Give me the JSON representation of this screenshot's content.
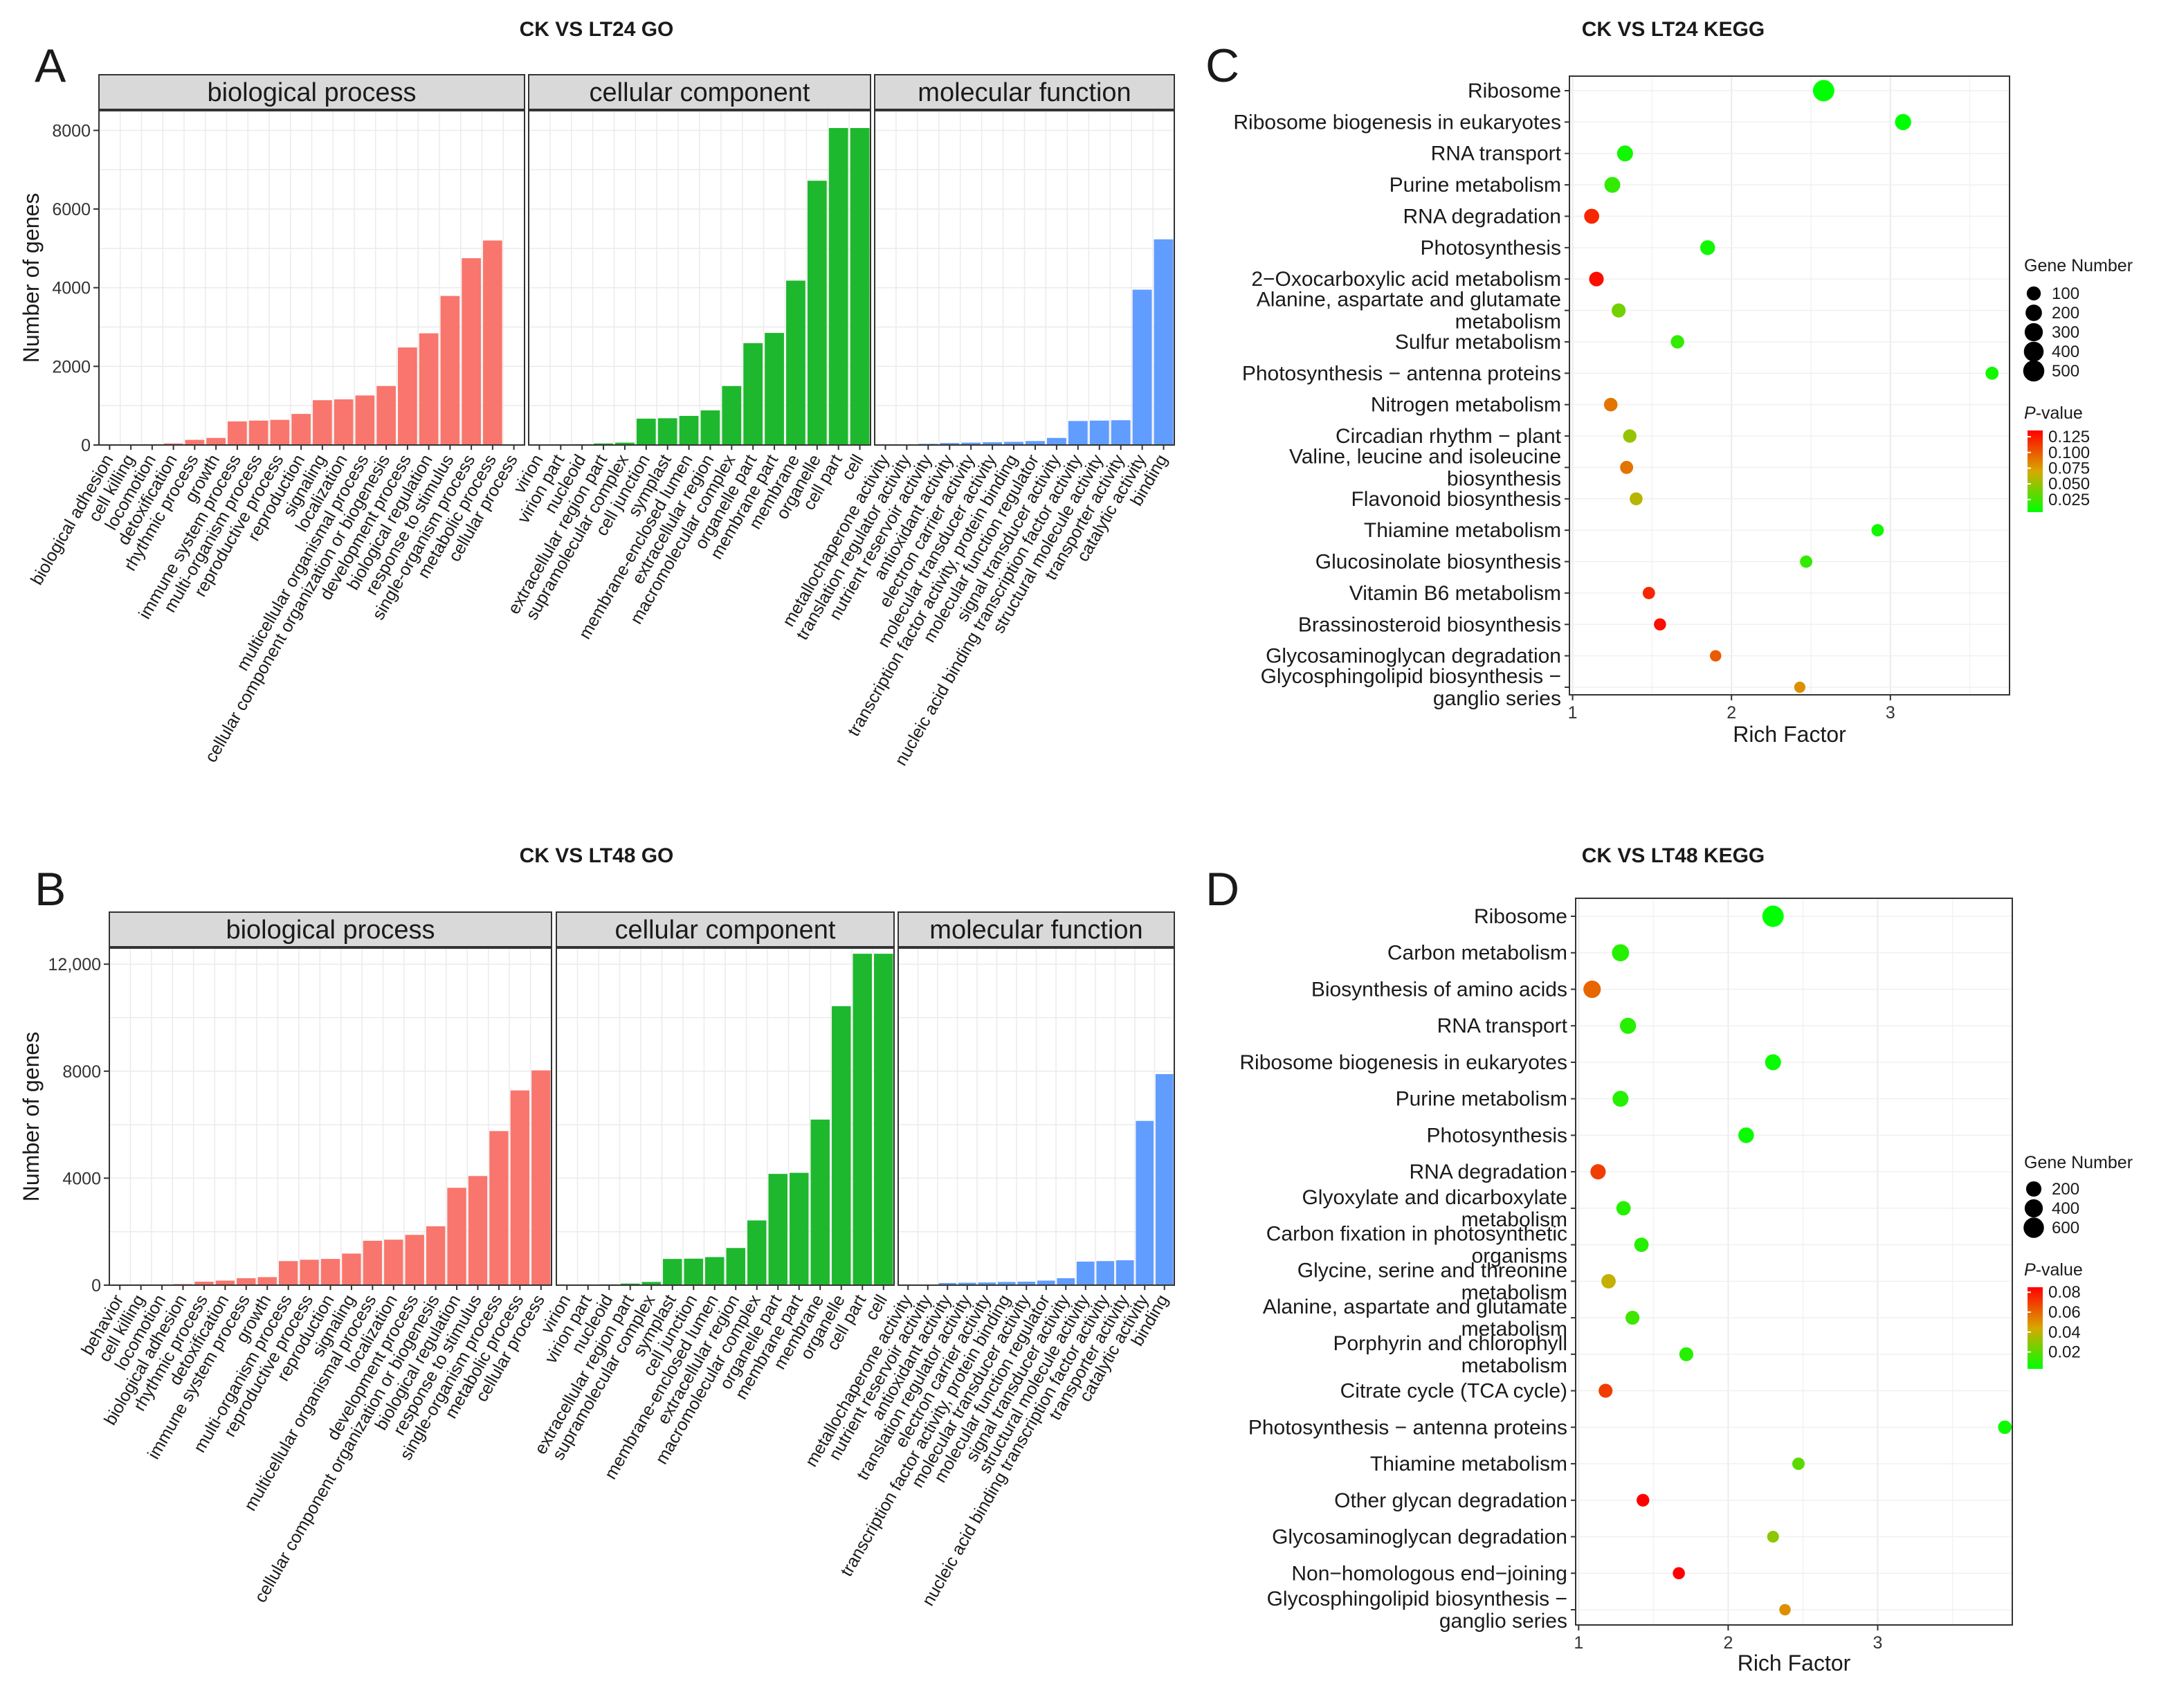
{
  "chart_data": [
    {
      "id": "A",
      "type": "bar",
      "panel_label": "A",
      "title": "CK VS LT24 GO",
      "ylabel": "Number of genes",
      "ylim": [
        0,
        8500
      ],
      "yticks": [
        0,
        2000,
        4000,
        6000,
        8000
      ],
      "ytick_labels": [
        "0",
        "2000",
        "4000",
        "6000",
        "8000"
      ],
      "facets": [
        {
          "name": "biological process",
          "color": "#f8766d",
          "categories": [
            "biological adhesion",
            "cell killing",
            "locomotion",
            "detoxification",
            "rhythmic process",
            "growth",
            "immune system process",
            "multi-organism process",
            "reproductive process",
            "reproduction",
            "signaling",
            "localization",
            "multicellular organismal process",
            "cellular component organization or biogenesis",
            "development process",
            "biological regulation",
            "response to stimulus",
            "single-organism process",
            "metabolic process",
            "cellular process"
          ],
          "values": [
            5,
            10,
            20,
            40,
            130,
            180,
            600,
            620,
            640,
            790,
            1140,
            1160,
            1260,
            1500,
            2480,
            2840,
            3790,
            4750,
            5200,
            0
          ]
        },
        {
          "name": "cellular component",
          "color": "#1eb82e",
          "categories": [
            "virion",
            "virion part",
            "nucleoid",
            "extracellular region part",
            "supramolecular complex",
            "cell junction",
            "symplast",
            "membrane-enclosed lumen",
            "extracellular region",
            "macromolecular complex",
            "organelle part",
            "membrane part",
            "membrane",
            "organelle",
            "cell part",
            "cell"
          ],
          "values": [
            10,
            15,
            20,
            40,
            60,
            670,
            680,
            740,
            880,
            1500,
            2590,
            2850,
            4180,
            6720,
            8060,
            8060
          ]
        },
        {
          "name": "molecular function",
          "color": "#619cff",
          "categories": [
            "metallochaperone activity",
            "translation regulator activity",
            "nutrient reservoir activity",
            "antioxidant activity",
            "electron carrier activity",
            "molecular transducer activity",
            "transcription factor activity, protein binding",
            "molecular function regulator",
            "signal transducer activity",
            "nucleic acid binding transcription factor activity",
            "structural molecule activity",
            "transporter activity",
            "catalytic activity",
            "binding"
          ],
          "values": [
            5,
            10,
            30,
            50,
            60,
            70,
            80,
            100,
            180,
            610,
            620,
            630,
            3950,
            5230
          ]
        }
      ]
    },
    {
      "id": "B",
      "type": "bar",
      "panel_label": "B",
      "title": "CK VS LT48 GO",
      "ylabel": "Number of genes",
      "ylim": [
        0,
        12600
      ],
      "yticks": [
        0,
        4000,
        8000,
        12000
      ],
      "ytick_labels": [
        "0",
        "4000",
        "8000",
        "12,000"
      ],
      "facets": [
        {
          "name": "biological process",
          "color": "#f8766d",
          "categories": [
            "behavior",
            "cell killing",
            "locomotion",
            "biological adhesion",
            "rhythmic process",
            "detoxification",
            "immune system process",
            "growth",
            "multi-organism process",
            "reproductive process",
            "reproduction",
            "signaling",
            "multicellular organismal process",
            "localization",
            "development process",
            "cellular component organization or biogenesis",
            "biological regulation",
            "response to stimulus",
            "single-organism process",
            "metabolic process",
            "cellular process"
          ],
          "values": [
            5,
            10,
            20,
            40,
            130,
            170,
            260,
            300,
            900,
            950,
            980,
            1180,
            1660,
            1700,
            1880,
            2200,
            3640,
            4080,
            5760,
            7280,
            8030
          ]
        },
        {
          "name": "cellular component",
          "color": "#1eb82e",
          "categories": [
            "virion",
            "virion part",
            "nucleoid",
            "extracellular region part",
            "supramolecular complex",
            "symplast",
            "cell junction",
            "membrane-enclosed lumen",
            "extracellular region",
            "macromolecular complex",
            "organelle part",
            "membrane part",
            "membrane",
            "organelle",
            "cell part",
            "cell"
          ],
          "values": [
            10,
            15,
            30,
            60,
            120,
            980,
            990,
            1050,
            1390,
            2420,
            4160,
            4200,
            6190,
            10430,
            12390,
            12390
          ]
        },
        {
          "name": "molecular function",
          "color": "#619cff",
          "categories": [
            "metallochaperone activity",
            "nutrient reservoir activity",
            "antioxidant activity",
            "translation regulator activity",
            "electron carrier activity",
            "transcription factor activity, protein binding",
            "molecular transducer activity",
            "molecular function regulator",
            "signal transducer activity",
            "structural molecule activity",
            "nucleic acid binding transcription factor activity",
            "transporter activity",
            "catalytic activity",
            "binding"
          ],
          "values": [
            5,
            10,
            80,
            90,
            100,
            120,
            130,
            170,
            260,
            880,
            900,
            930,
            6140,
            7890
          ]
        }
      ]
    },
    {
      "id": "C",
      "type": "scatter",
      "panel_label": "C",
      "title": "CK VS LT24 KEGG",
      "xlabel": "Rich Factor",
      "xlim": [
        0.98,
        3.75
      ],
      "xticks": [
        1,
        2,
        3
      ],
      "xtick_labels": [
        "1",
        "2",
        "3"
      ],
      "size_legend_title": "Gene Number",
      "size_legend": [
        100,
        200,
        300,
        400,
        500
      ],
      "color_legend_title_italic": "P",
      "color_legend_title_rest": "-value",
      "color_legend": [
        "0.125",
        "0.100",
        "0.075",
        "0.050",
        "0.025"
      ],
      "color_range": [
        0.005,
        0.135
      ],
      "pathways": [
        {
          "name": [
            "Ribosome"
          ],
          "rich": 2.58,
          "genes": 520,
          "p": 0.003
        },
        {
          "name": [
            "Ribosome biogenesis in eukaryotes"
          ],
          "rich": 3.08,
          "genes": 190,
          "p": 0.005
        },
        {
          "name": [
            "RNA transport"
          ],
          "rich": 1.33,
          "genes": 180,
          "p": 0.01
        },
        {
          "name": [
            "Purine metabolism"
          ],
          "rich": 1.25,
          "genes": 175,
          "p": 0.02
        },
        {
          "name": [
            "RNA degradation"
          ],
          "rich": 1.12,
          "genes": 140,
          "p": 0.12
        },
        {
          "name": [
            "Photosynthesis"
          ],
          "rich": 1.85,
          "genes": 130,
          "p": 0.01
        },
        {
          "name": [
            "2−Oxocarboxylic acid metabolism"
          ],
          "rich": 1.15,
          "genes": 120,
          "p": 0.13
        },
        {
          "name": [
            "Alanine, aspartate and glutamate",
            "metabolism"
          ],
          "rich": 1.29,
          "genes": 100,
          "p": 0.04
        },
        {
          "name": [
            "Sulfur metabolism"
          ],
          "rich": 1.66,
          "genes": 80,
          "p": 0.02
        },
        {
          "name": [
            "Photosynthesis − antenna proteins"
          ],
          "rich": 3.64,
          "genes": 70,
          "p": 0.01
        },
        {
          "name": [
            "Nitrogen metabolism"
          ],
          "rich": 1.24,
          "genes": 85,
          "p": 0.09
        },
        {
          "name": [
            "Circadian rhythm − plant"
          ],
          "rich": 1.36,
          "genes": 80,
          "p": 0.05
        },
        {
          "name": [
            "Valine, leucine and isoleucine",
            "biosynthesis"
          ],
          "rich": 1.34,
          "genes": 70,
          "p": 0.09
        },
        {
          "name": [
            "Flavonoid biosynthesis"
          ],
          "rich": 1.4,
          "genes": 65,
          "p": 0.06
        },
        {
          "name": [
            "Thiamine metabolism"
          ],
          "rich": 2.92,
          "genes": 50,
          "p": 0.01
        },
        {
          "name": [
            "Glucosinolate biosynthesis"
          ],
          "rich": 2.47,
          "genes": 50,
          "p": 0.02
        },
        {
          "name": [
            "Vitamin B6 metabolism"
          ],
          "rich": 1.48,
          "genes": 50,
          "p": 0.12
        },
        {
          "name": [
            "Brassinosteroid biosynthesis"
          ],
          "rich": 1.55,
          "genes": 45,
          "p": 0.13
        },
        {
          "name": [
            "Glycosaminoglycan degradation"
          ],
          "rich": 1.9,
          "genes": 30,
          "p": 0.1
        },
        {
          "name": [
            "Glycosphingolipid biosynthesis −",
            "ganglio series"
          ],
          "rich": 2.43,
          "genes": 25,
          "p": 0.08
        }
      ]
    },
    {
      "id": "D",
      "type": "scatter",
      "panel_label": "D",
      "title": "CK VS LT48 KEGG",
      "xlabel": "Rich Factor",
      "xlim": [
        0.98,
        3.9
      ],
      "xticks": [
        1,
        2,
        3
      ],
      "xtick_labels": [
        "1",
        "2",
        "3"
      ],
      "size_legend_title": "Gene Number",
      "size_legend": [
        200,
        400,
        600
      ],
      "color_legend_title_italic": "P",
      "color_legend_title_rest": "-value",
      "color_legend": [
        "0.08",
        "0.06",
        "0.04",
        "0.02"
      ],
      "color_range": [
        0.003,
        0.085
      ],
      "pathways": [
        {
          "name": [
            "Ribosome"
          ],
          "rich": 2.3,
          "genes": 700,
          "p": 0.002
        },
        {
          "name": [
            "Carbon metabolism"
          ],
          "rich": 1.28,
          "genes": 320,
          "p": 0.01
        },
        {
          "name": [
            "Biosynthesis of amino acids"
          ],
          "rich": 1.09,
          "genes": 340,
          "p": 0.06
        },
        {
          "name": [
            "RNA transport"
          ],
          "rich": 1.33,
          "genes": 250,
          "p": 0.01
        },
        {
          "name": [
            "Ribosome biogenesis in eukaryotes"
          ],
          "rich": 2.3,
          "genes": 240,
          "p": 0.005
        },
        {
          "name": [
            "Purine metabolism"
          ],
          "rich": 1.28,
          "genes": 240,
          "p": 0.01
        },
        {
          "name": [
            "Photosynthesis"
          ],
          "rich": 2.12,
          "genes": 220,
          "p": 0.005
        },
        {
          "name": [
            "RNA degradation"
          ],
          "rich": 1.13,
          "genes": 200,
          "p": 0.07
        },
        {
          "name": [
            "Glyoxylate and dicarboxylate",
            "metabolism"
          ],
          "rich": 1.3,
          "genes": 150,
          "p": 0.01
        },
        {
          "name": [
            "Carbon fixation in photosynthetic",
            "organisms"
          ],
          "rich": 1.42,
          "genes": 150,
          "p": 0.01
        },
        {
          "name": [
            "Glycine, serine and threonine",
            "metabolism"
          ],
          "rich": 1.2,
          "genes": 150,
          "p": 0.04
        },
        {
          "name": [
            "Alanine, aspartate and glutamate",
            "metabolism"
          ],
          "rich": 1.36,
          "genes": 130,
          "p": 0.015
        },
        {
          "name": [
            "Porphyrin and chlorophyll",
            "metabolism"
          ],
          "rich": 1.72,
          "genes": 130,
          "p": 0.01
        },
        {
          "name": [
            "Citrate cycle (TCA cycle)"
          ],
          "rich": 1.18,
          "genes": 130,
          "p": 0.07
        },
        {
          "name": [
            "Photosynthesis − antenna proteins"
          ],
          "rich": 3.85,
          "genes": 110,
          "p": 0.005
        },
        {
          "name": [
            "Thiamine metabolism"
          ],
          "rich": 2.47,
          "genes": 70,
          "p": 0.02
        },
        {
          "name": [
            "Other glycan degradation"
          ],
          "rich": 1.43,
          "genes": 80,
          "p": 0.085
        },
        {
          "name": [
            "Glycosaminoglycan degradation"
          ],
          "rich": 2.3,
          "genes": 50,
          "p": 0.03
        },
        {
          "name": [
            "Non−homologous end−joining"
          ],
          "rich": 1.67,
          "genes": 60,
          "p": 0.085
        },
        {
          "name": [
            "Glycosphingolipid biosynthesis −",
            "ganglio series"
          ],
          "rich": 2.38,
          "genes": 40,
          "p": 0.05
        }
      ]
    }
  ]
}
